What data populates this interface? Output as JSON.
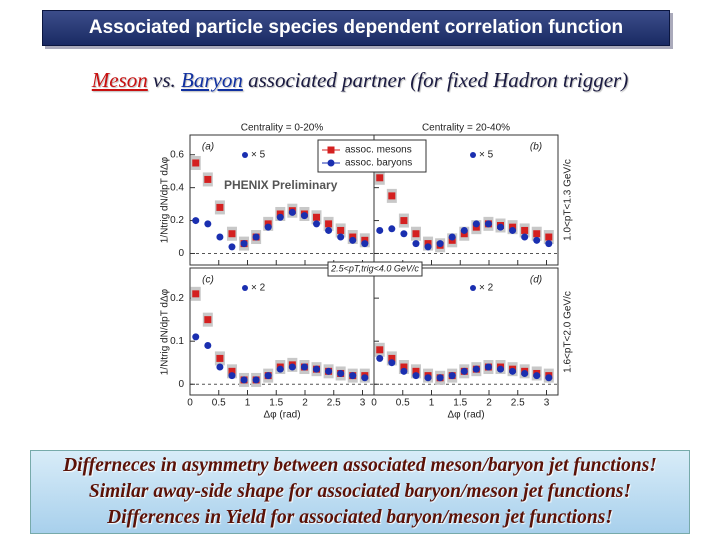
{
  "slide": {
    "title": "Associated particle species dependent correlation function",
    "subtitle": [
      "Meson",
      " vs. ",
      "Baryon",
      " associated partner (for fixed Hadron trigger)"
    ],
    "notes": [
      "Differneces in asymmetry between associated meson/baryon jet functions!",
      "Similar away-side shape for associated baryon/meson jet functions!",
      "Differences in Yield for associated baryon/meson jet functions!"
    ]
  },
  "figure": {
    "column_titles": [
      "Centrality = 0-20%",
      "Centrality = 20-40%"
    ],
    "row_labels": [
      "1.0<pT<1.3 GeV/c",
      "1.6<pT<2.0 GeV/c"
    ],
    "y_labels": [
      "1/Ntrig dN/dpT dΔφ",
      "1/Ntrig dN/dpT dΔφ"
    ],
    "x_labels": [
      "Δφ (rad)",
      "Δφ (rad)"
    ],
    "preliminary": "PHENIX Preliminary",
    "trigger": "2.5<pT,trig<4.0 GeV/c"
  },
  "chart_data": [
    {
      "type": "scatter",
      "panel_label": "(a)",
      "scale_label": "× 5",
      "x": [
        0.1,
        0.31,
        0.52,
        0.73,
        0.94,
        1.15,
        1.36,
        1.57,
        1.78,
        1.99,
        2.2,
        2.41,
        2.62,
        2.83,
        3.04
      ],
      "series": [
        {
          "name": "assoc. mesons",
          "color": "#d42020",
          "marker": "square",
          "values": [
            0.55,
            0.45,
            0.28,
            0.12,
            0.06,
            0.1,
            0.18,
            0.24,
            0.26,
            0.24,
            0.22,
            0.18,
            0.14,
            0.1,
            0.08
          ]
        },
        {
          "name": "assoc. baryons",
          "color": "#1a2fb0",
          "marker": "circle",
          "values": [
            0.2,
            0.18,
            0.1,
            0.04,
            0.06,
            0.1,
            0.16,
            0.22,
            0.25,
            0.23,
            0.18,
            0.14,
            0.1,
            0.08,
            0.06
          ]
        }
      ],
      "xlim": [
        0,
        3.2
      ],
      "ylim": [
        -0.07,
        0.72
      ],
      "xticks": [
        0,
        0.5,
        1,
        1.5,
        2,
        2.5,
        3
      ],
      "yticks": [
        0,
        0.2,
        0.4,
        0.6
      ]
    },
    {
      "type": "scatter",
      "panel_label": "(b)",
      "scale_label": "× 5",
      "x": [
        0.1,
        0.31,
        0.52,
        0.73,
        0.94,
        1.15,
        1.36,
        1.57,
        1.78,
        1.99,
        2.2,
        2.41,
        2.62,
        2.83,
        3.04
      ],
      "series": [
        {
          "name": "assoc. mesons",
          "color": "#d42020",
          "marker": "square",
          "values": [
            0.46,
            0.35,
            0.2,
            0.12,
            0.06,
            0.05,
            0.08,
            0.12,
            0.16,
            0.18,
            0.17,
            0.16,
            0.14,
            0.12,
            0.1
          ]
        },
        {
          "name": "assoc. baryons",
          "color": "#1a2fb0",
          "marker": "circle",
          "values": [
            0.14,
            0.15,
            0.12,
            0.06,
            0.04,
            0.06,
            0.1,
            0.14,
            0.18,
            0.18,
            0.16,
            0.14,
            0.1,
            0.08,
            0.06
          ]
        }
      ],
      "xlim": [
        0,
        3.2
      ],
      "ylim": [
        -0.07,
        0.72
      ],
      "xticks": [
        0,
        0.5,
        1,
        1.5,
        2,
        2.5,
        3
      ],
      "yticks": [
        0,
        0.2,
        0.4,
        0.6
      ]
    },
    {
      "type": "scatter",
      "panel_label": "(c)",
      "scale_label": "× 2",
      "x": [
        0.1,
        0.31,
        0.52,
        0.73,
        0.94,
        1.15,
        1.36,
        1.57,
        1.78,
        1.99,
        2.2,
        2.41,
        2.62,
        2.83,
        3.04
      ],
      "series": [
        {
          "name": "assoc. mesons",
          "color": "#d42020",
          "marker": "square",
          "values": [
            0.21,
            0.15,
            0.06,
            0.03,
            0.01,
            0.01,
            0.02,
            0.04,
            0.045,
            0.04,
            0.035,
            0.03,
            0.025,
            0.02,
            0.02
          ]
        },
        {
          "name": "assoc. baryons",
          "color": "#1a2fb0",
          "marker": "circle",
          "values": [
            0.11,
            0.09,
            0.04,
            0.02,
            0.01,
            0.01,
            0.02,
            0.035,
            0.04,
            0.04,
            0.035,
            0.03,
            0.025,
            0.02,
            0.015
          ]
        }
      ],
      "xlim": [
        0,
        3.2
      ],
      "ylim": [
        -0.025,
        0.27
      ],
      "xticks": [
        0,
        0.5,
        1,
        1.5,
        2,
        2.5,
        3
      ],
      "yticks": [
        0,
        0.1,
        0.2
      ]
    },
    {
      "type": "scatter",
      "panel_label": "(d)",
      "scale_label": "× 2",
      "x": [
        0.1,
        0.31,
        0.52,
        0.73,
        0.94,
        1.15,
        1.36,
        1.57,
        1.78,
        1.99,
        2.2,
        2.41,
        2.62,
        2.83,
        3.04
      ],
      "series": [
        {
          "name": "assoc. mesons",
          "color": "#d42020",
          "marker": "square",
          "values": [
            0.08,
            0.06,
            0.04,
            0.03,
            0.02,
            0.015,
            0.02,
            0.03,
            0.035,
            0.04,
            0.04,
            0.035,
            0.03,
            0.025,
            0.02
          ]
        },
        {
          "name": "assoc. baryons",
          "color": "#1a2fb0",
          "marker": "circle",
          "values": [
            0.06,
            0.05,
            0.03,
            0.02,
            0.015,
            0.015,
            0.02,
            0.03,
            0.035,
            0.04,
            0.035,
            0.03,
            0.025,
            0.02,
            0.015
          ]
        }
      ],
      "xlim": [
        0,
        3.2
      ],
      "ylim": [
        -0.025,
        0.27
      ],
      "xticks": [
        0,
        0.5,
        1,
        1.5,
        2,
        2.5,
        3
      ],
      "yticks": [
        0,
        0.1,
        0.2
      ]
    }
  ]
}
